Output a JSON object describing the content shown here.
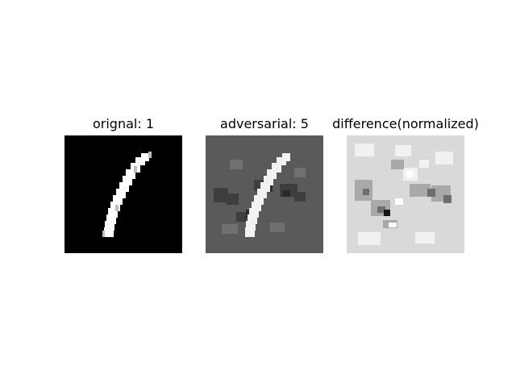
{
  "figure": {
    "panels": [
      {
        "id": "original",
        "title": "orignal: 1"
      },
      {
        "id": "adversarial",
        "title": "adversarial: 5"
      },
      {
        "id": "difference",
        "title": "difference(normalized)"
      }
    ],
    "colors": {
      "original_bg": "#000000",
      "adversarial_bg": "#5a5a5a",
      "difference_bg": "#d9d9d9",
      "stroke": "#ffffff",
      "dark": "#141414"
    }
  }
}
